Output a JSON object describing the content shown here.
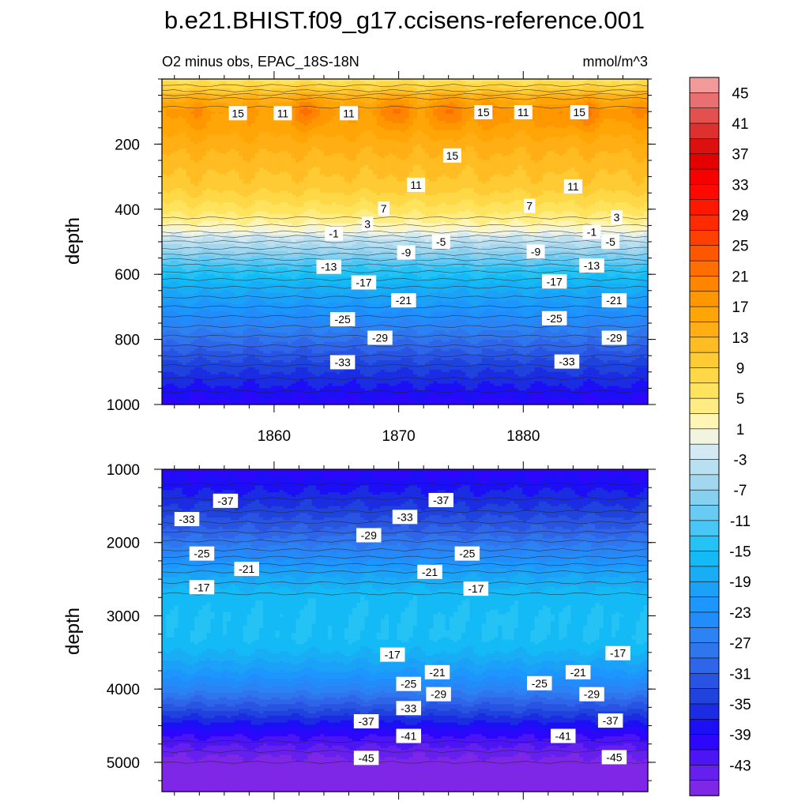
{
  "figure": {
    "title": "b.e21.BHIST.f09_g17.ccisens-reference.001",
    "subtitle_left": "O2 minus obs, EPAC_18S-18N",
    "subtitle_right": "mmol/m^3"
  },
  "chart_data": [
    {
      "type": "heatmap",
      "panel": "upper",
      "ylabel": "depth",
      "xlim": [
        1851,
        1890
      ],
      "ylim": [
        1000,
        0
      ],
      "yticks": [
        200,
        400,
        600,
        800,
        1000
      ],
      "xticks": [
        1860,
        1870,
        1880
      ],
      "profile": [
        {
          "depth": 0,
          "value": 6
        },
        {
          "depth": 30,
          "value": 9
        },
        {
          "depth": 60,
          "value": 14
        },
        {
          "depth": 100,
          "value": 17
        },
        {
          "depth": 150,
          "value": 16
        },
        {
          "depth": 200,
          "value": 14
        },
        {
          "depth": 260,
          "value": 12
        },
        {
          "depth": 330,
          "value": 10
        },
        {
          "depth": 400,
          "value": 6
        },
        {
          "depth": 440,
          "value": 3
        },
        {
          "depth": 470,
          "value": 0
        },
        {
          "depth": 490,
          "value": -3
        },
        {
          "depth": 530,
          "value": -7
        },
        {
          "depth": 580,
          "value": -13
        },
        {
          "depth": 640,
          "value": -18
        },
        {
          "depth": 700,
          "value": -22
        },
        {
          "depth": 760,
          "value": -26
        },
        {
          "depth": 820,
          "value": -30
        },
        {
          "depth": 880,
          "value": -34
        },
        {
          "depth": 940,
          "value": -37
        },
        {
          "depth": 1000,
          "value": -40
        }
      ],
      "warm_cores": [
        {
          "year": 1853.5,
          "depth": 100,
          "value": 19
        },
        {
          "year": 1862.8,
          "depth": 95,
          "value": 21
        },
        {
          "year": 1869.7,
          "depth": 95,
          "value": 21
        },
        {
          "year": 1874.0,
          "depth": 95,
          "value": 21
        },
        {
          "year": 1877.2,
          "depth": 95,
          "value": 19
        },
        {
          "year": 1882.4,
          "depth": 100,
          "value": 19
        },
        {
          "year": 1885.0,
          "depth": 100,
          "value": 21
        },
        {
          "year": 1889.0,
          "depth": 95,
          "value": 19
        }
      ],
      "contour_labels": [
        {
          "year": 1857.1,
          "depth": 105,
          "text": "15"
        },
        {
          "year": 1860.7,
          "depth": 105,
          "text": "11"
        },
        {
          "year": 1866.0,
          "depth": 105,
          "text": "11"
        },
        {
          "year": 1876.8,
          "depth": 102,
          "text": "15"
        },
        {
          "year": 1880.0,
          "depth": 102,
          "text": "11"
        },
        {
          "year": 1884.5,
          "depth": 102,
          "text": "15"
        },
        {
          "year": 1874.3,
          "depth": 235,
          "text": "15"
        },
        {
          "year": 1871.4,
          "depth": 325,
          "text": "11"
        },
        {
          "year": 1884.0,
          "depth": 330,
          "text": "11"
        },
        {
          "year": 1868.8,
          "depth": 398,
          "text": "7"
        },
        {
          "year": 1880.5,
          "depth": 390,
          "text": "7"
        },
        {
          "year": 1887.5,
          "depth": 425,
          "text": "3"
        },
        {
          "year": 1867.5,
          "depth": 445,
          "text": "3"
        },
        {
          "year": 1864.8,
          "depth": 475,
          "text": "-1"
        },
        {
          "year": 1885.5,
          "depth": 470,
          "text": "-1"
        },
        {
          "year": 1873.4,
          "depth": 500,
          "text": "-5"
        },
        {
          "year": 1887.0,
          "depth": 500,
          "text": "-5"
        },
        {
          "year": 1870.6,
          "depth": 533,
          "text": "-9"
        },
        {
          "year": 1881.0,
          "depth": 530,
          "text": "-9"
        },
        {
          "year": 1864.4,
          "depth": 577,
          "text": "-13"
        },
        {
          "year": 1885.5,
          "depth": 573,
          "text": "-13"
        },
        {
          "year": 1867.2,
          "depth": 625,
          "text": "-17"
        },
        {
          "year": 1882.5,
          "depth": 622,
          "text": "-17"
        },
        {
          "year": 1870.4,
          "depth": 680,
          "text": "-21"
        },
        {
          "year": 1887.3,
          "depth": 680,
          "text": "-21"
        },
        {
          "year": 1865.5,
          "depth": 738,
          "text": "-25"
        },
        {
          "year": 1882.5,
          "depth": 735,
          "text": "-25"
        },
        {
          "year": 1868.5,
          "depth": 795,
          "text": "-29"
        },
        {
          "year": 1887.3,
          "depth": 795,
          "text": "-29"
        },
        {
          "year": 1865.5,
          "depth": 870,
          "text": "-33"
        },
        {
          "year": 1883.5,
          "depth": 868,
          "text": "-33"
        }
      ]
    },
    {
      "type": "heatmap",
      "panel": "lower",
      "ylabel": "depth",
      "xlim": [
        1851,
        1890
      ],
      "ylim": [
        5400,
        1000
      ],
      "yticks": [
        1000,
        2000,
        3000,
        4000,
        5000
      ],
      "profile": [
        {
          "depth": 1000,
          "value": -40
        },
        {
          "depth": 1200,
          "value": -38
        },
        {
          "depth": 1500,
          "value": -35
        },
        {
          "depth": 1800,
          "value": -31
        },
        {
          "depth": 2100,
          "value": -26
        },
        {
          "depth": 2400,
          "value": -20
        },
        {
          "depth": 2700,
          "value": -16
        },
        {
          "depth": 3000,
          "value": -15
        },
        {
          "depth": 3300,
          "value": -15
        },
        {
          "depth": 3500,
          "value": -17
        },
        {
          "depth": 3750,
          "value": -21
        },
        {
          "depth": 4000,
          "value": -26
        },
        {
          "depth": 4250,
          "value": -32
        },
        {
          "depth": 4450,
          "value": -37
        },
        {
          "depth": 4650,
          "value": -41
        },
        {
          "depth": 4850,
          "value": -44
        },
        {
          "depth": 5000,
          "value": -46
        },
        {
          "depth": 5400,
          "value": -46
        }
      ],
      "contour_labels": [
        {
          "year": 1856.1,
          "depth": 1430,
          "text": "-37"
        },
        {
          "year": 1873.4,
          "depth": 1420,
          "text": "-37"
        },
        {
          "year": 1853.0,
          "depth": 1680,
          "text": "-33"
        },
        {
          "year": 1870.5,
          "depth": 1650,
          "text": "-33"
        },
        {
          "year": 1867.6,
          "depth": 1900,
          "text": "-29"
        },
        {
          "year": 1854.2,
          "depth": 2150,
          "text": "-25"
        },
        {
          "year": 1875.5,
          "depth": 2150,
          "text": "-25"
        },
        {
          "year": 1857.8,
          "depth": 2360,
          "text": "-21"
        },
        {
          "year": 1872.5,
          "depth": 2400,
          "text": "-21"
        },
        {
          "year": 1854.2,
          "depth": 2610,
          "text": "-17"
        },
        {
          "year": 1876.2,
          "depth": 2630,
          "text": "-17"
        },
        {
          "year": 1869.5,
          "depth": 3530,
          "text": "-17"
        },
        {
          "year": 1887.6,
          "depth": 3510,
          "text": "-17"
        },
        {
          "year": 1873.1,
          "depth": 3770,
          "text": "-21"
        },
        {
          "year": 1884.4,
          "depth": 3770,
          "text": "-21"
        },
        {
          "year": 1870.8,
          "depth": 3930,
          "text": "-25"
        },
        {
          "year": 1881.3,
          "depth": 3920,
          "text": "-25"
        },
        {
          "year": 1873.2,
          "depth": 4070,
          "text": "-29"
        },
        {
          "year": 1885.5,
          "depth": 4070,
          "text": "-29"
        },
        {
          "year": 1870.8,
          "depth": 4260,
          "text": "-33"
        },
        {
          "year": 1867.4,
          "depth": 4440,
          "text": "-37"
        },
        {
          "year": 1887.0,
          "depth": 4430,
          "text": "-37"
        },
        {
          "year": 1870.8,
          "depth": 4640,
          "text": "-41"
        },
        {
          "year": 1883.2,
          "depth": 4640,
          "text": "-41"
        },
        {
          "year": 1867.4,
          "depth": 4940,
          "text": "-45"
        },
        {
          "year": 1887.3,
          "depth": 4930,
          "text": "-45"
        }
      ]
    }
  ],
  "colorbar": {
    "labels": [
      "45",
      "41",
      "37",
      "33",
      "29",
      "25",
      "21",
      "17",
      "13",
      "9",
      "5",
      "1",
      "-3",
      "-7",
      "-11",
      "-15",
      "-19",
      "-23",
      "-27",
      "-31",
      "-35",
      "-39",
      "-43"
    ],
    "levels_min": -47,
    "levels_max": 47,
    "step": 2,
    "colors": [
      {
        "v": -47,
        "c": "#8a2be2"
      },
      {
        "v": -43,
        "c": "#5a1cf0"
      },
      {
        "v": -39,
        "c": "#1e00ff"
      },
      {
        "v": -35,
        "c": "#1a3ad8"
      },
      {
        "v": -31,
        "c": "#2e5ce6"
      },
      {
        "v": -27,
        "c": "#2f7ff0"
      },
      {
        "v": -23,
        "c": "#1e90ff"
      },
      {
        "v": -19,
        "c": "#1aa6f5"
      },
      {
        "v": -15,
        "c": "#12c0f5"
      },
      {
        "v": -11,
        "c": "#5ac8f5"
      },
      {
        "v": -7,
        "c": "#96d2ee"
      },
      {
        "v": -3,
        "c": "#c4e4f0"
      },
      {
        "v": -1,
        "c": "#e2f0f4"
      },
      {
        "v": 1,
        "c": "#fff9cc"
      },
      {
        "v": 3,
        "c": "#fff2a0"
      },
      {
        "v": 5,
        "c": "#ffe866"
      },
      {
        "v": 9,
        "c": "#ffd23c"
      },
      {
        "v": 13,
        "c": "#ffb41a"
      },
      {
        "v": 17,
        "c": "#ffa000"
      },
      {
        "v": 21,
        "c": "#ff7a00"
      },
      {
        "v": 25,
        "c": "#ff4a00"
      },
      {
        "v": 29,
        "c": "#ff2000"
      },
      {
        "v": 33,
        "c": "#ff0000"
      },
      {
        "v": 37,
        "c": "#dc0000"
      },
      {
        "v": 41,
        "c": "#e04040"
      },
      {
        "v": 45,
        "c": "#ea8080"
      },
      {
        "v": 47,
        "c": "#f7b3b3"
      }
    ]
  }
}
